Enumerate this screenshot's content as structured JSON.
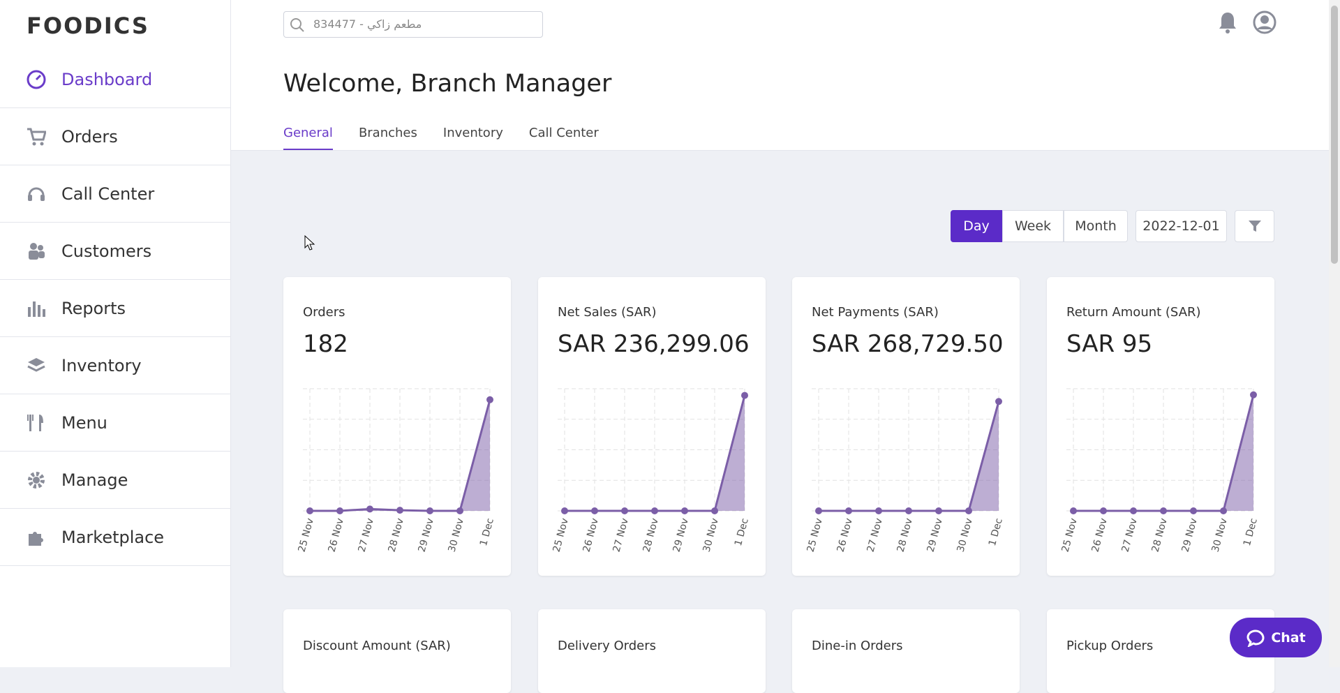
{
  "brand": "FOODICS",
  "search_placeholder": "834477 - مطعم زاكي",
  "nav": [
    "Dashboard",
    "Orders",
    "Call Center",
    "Customers",
    "Reports",
    "Inventory",
    "Menu",
    "Manage",
    "Marketplace"
  ],
  "header": {
    "title": "Welcome, Branch Manager",
    "tabs": [
      "General",
      "Branches",
      "Inventory",
      "Call Center"
    ]
  },
  "period_buttons": [
    "Day",
    "Week",
    "Month"
  ],
  "date": "2022-12-01",
  "cards": [
    {
      "title": "Orders",
      "value": "182",
      "chart": {
        "type": "line",
        "x": [
          "25 Nov",
          "26 Nov",
          "27 Nov",
          "28 Nov",
          "29 Nov",
          "30 Nov",
          "1 Dec"
        ],
        "values": [
          0,
          0,
          3,
          1,
          0,
          0,
          182
        ],
        "ylim": [
          0,
          200
        ],
        "yticks": [
          0,
          50,
          100,
          150,
          200
        ],
        "color": "#7b5ea7"
      }
    },
    {
      "title": "Net Sales (SAR)",
      "value": "SAR 236,299.06",
      "chart": {
        "type": "line",
        "x": [
          "25 Nov",
          "26 Nov",
          "27 Nov",
          "28 Nov",
          "29 Nov",
          "30 Nov",
          "1 Dec"
        ],
        "values": [
          0,
          0,
          0,
          0,
          0,
          0,
          236299.06
        ],
        "ylim": [
          0,
          250000
        ],
        "yticks": [
          0,
          62500,
          125000,
          187500,
          250000
        ],
        "color": "#7b5ea7"
      }
    },
    {
      "title": "Net Payments (SAR)",
      "value": "SAR 268,729.50",
      "chart": {
        "type": "line",
        "x": [
          "25 Nov",
          "26 Nov",
          "27 Nov",
          "28 Nov",
          "29 Nov",
          "30 Nov",
          "1 Dec"
        ],
        "values": [
          0,
          0,
          0,
          0,
          0,
          0,
          268729.5
        ],
        "ylim": [
          0,
          300000
        ],
        "yticks": [
          0,
          75000,
          150000,
          225000,
          300000
        ],
        "color": "#7b5ea7"
      }
    },
    {
      "title": "Return Amount (SAR)",
      "value": "SAR 95",
      "chart": {
        "type": "line",
        "x": [
          "25 Nov",
          "26 Nov",
          "27 Nov",
          "28 Nov",
          "29 Nov",
          "30 Nov",
          "1 Dec"
        ],
        "values": [
          0,
          0,
          0,
          0,
          0,
          0,
          95
        ],
        "ylim": [
          0,
          100
        ],
        "yticks": [
          0,
          25,
          50,
          75,
          100
        ],
        "color": "#7b5ea7"
      }
    }
  ],
  "lower_cards": [
    "Discount Amount (SAR)",
    "Delivery Orders",
    "Dine-in Orders",
    "Pickup Orders"
  ],
  "chat": "Chat"
}
